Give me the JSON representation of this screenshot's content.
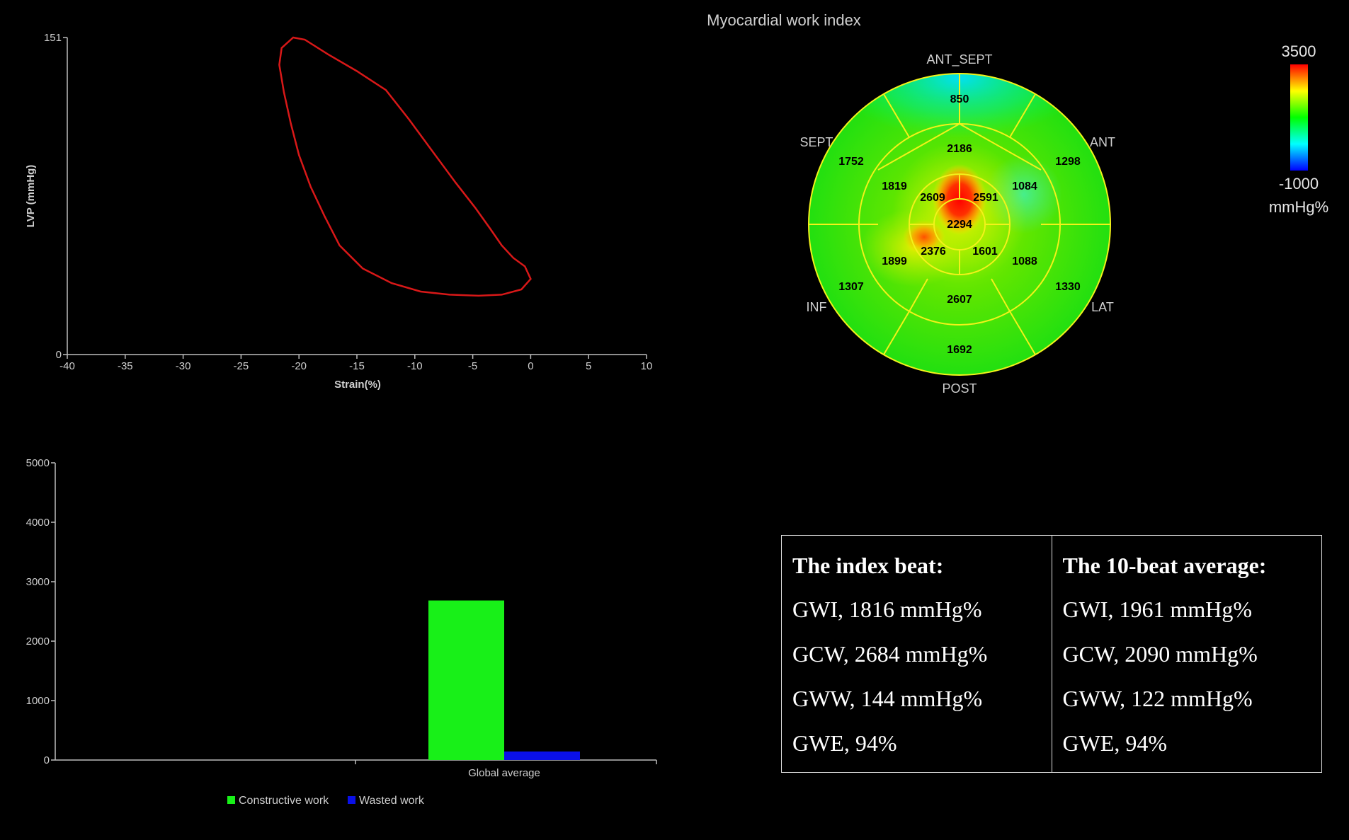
{
  "chart_data": [
    {
      "type": "line",
      "name_id": "pressure-strain-loop",
      "xlabel": "Strain(%)",
      "ylabel": "LVP (mmHg)",
      "xlim": [
        -40,
        10
      ],
      "ylim": [
        0,
        151
      ],
      "x_ticks": [
        "-40",
        "-35",
        "-30",
        "-25",
        "-20",
        "-15",
        "-10",
        "-5",
        "0",
        "5",
        "10"
      ],
      "y_ticks": [
        "151",
        "0"
      ],
      "line_color": "#d81818",
      "points": [
        [
          -20.5,
          151
        ],
        [
          -21.5,
          146
        ],
        [
          -21.7,
          138
        ],
        [
          -21.3,
          125
        ],
        [
          -20.7,
          110
        ],
        [
          -20.0,
          95
        ],
        [
          -19.0,
          80
        ],
        [
          -17.8,
          66
        ],
        [
          -16.5,
          52
        ],
        [
          -14.5,
          41
        ],
        [
          -12.0,
          34
        ],
        [
          -9.5,
          30
        ],
        [
          -7.0,
          28.5
        ],
        [
          -4.5,
          28
        ],
        [
          -2.5,
          28.5
        ],
        [
          -0.8,
          31
        ],
        [
          0.0,
          36
        ],
        [
          -0.5,
          42
        ],
        [
          -1.5,
          46
        ],
        [
          -2.5,
          52
        ],
        [
          -3.5,
          60
        ],
        [
          -4.8,
          70
        ],
        [
          -6.5,
          82
        ],
        [
          -8.5,
          97
        ],
        [
          -10.5,
          112
        ],
        [
          -12.5,
          126
        ],
        [
          -15.0,
          135
        ],
        [
          -17.5,
          143
        ],
        [
          -19.5,
          150
        ],
        [
          -20.5,
          151
        ]
      ]
    },
    {
      "type": "bar",
      "name_id": "global-work-bars",
      "categories": [
        "Global average"
      ],
      "series": [
        {
          "name": "Constructive work",
          "values": [
            2684
          ],
          "color": "#18f018"
        },
        {
          "name": "Wasted work",
          "values": [
            144
          ],
          "color": "#0a10e8"
        }
      ],
      "ylim": [
        0,
        5000
      ],
      "y_ticks": [
        "0",
        "1000",
        "2000",
        "3000",
        "4000",
        "5000"
      ]
    },
    {
      "type": "heatmap",
      "name_id": "bullseye-plot",
      "title": "Myocardial work index",
      "wall_labels": [
        "ANT_SEPT",
        "ANT",
        "LAT",
        "POST",
        "INF",
        "SEPT"
      ],
      "segments": {
        "basal": [
          "850",
          "1298",
          "1330",
          "1692",
          "1307",
          "1752"
        ],
        "mid": [
          "2186",
          "1084",
          "1088",
          "2607",
          "1899",
          "1819"
        ],
        "apical": [
          "2591",
          "1601",
          "2376",
          "2609"
        ],
        "apex": "2294"
      },
      "scale": {
        "max": "3500",
        "min": "-1000",
        "unit": "mmHg%"
      }
    }
  ],
  "summary": {
    "index_beat": {
      "title": "The index beat:",
      "rows": [
        "GWI,  1816 mmHg%",
        "GCW, 2684 mmHg%",
        "GWW,  144 mmHg%",
        "GWE, 94%"
      ]
    },
    "average": {
      "title": "The 10-beat average:",
      "rows": [
        "GWI,  1961 mmHg%",
        "GCW, 2090 mmHg%",
        "GWW,  122 mmHg%",
        "GWE, 94%"
      ]
    }
  }
}
